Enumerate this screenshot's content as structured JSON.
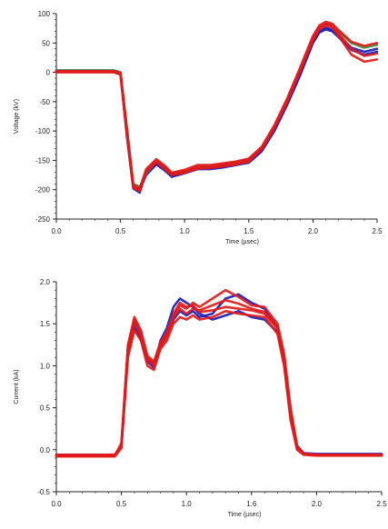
{
  "colors": {
    "axis": "#222222",
    "blue": "#1d1db4",
    "red": "#e21a1a",
    "green": "#3d8a3d"
  },
  "chart_data": [
    {
      "type": "line",
      "title": "",
      "xlabel": "Time (µsec)",
      "ylabel": "Voltage (kV)",
      "xlim": [
        0.0,
        2.5
      ],
      "ylim": [
        -250,
        100
      ],
      "grid": false,
      "legend": "none",
      "x_ticks": [
        "0.0",
        "0.5",
        "1.0",
        "1.5",
        "2.0",
        "2.5"
      ],
      "y_ticks": [
        "100",
        "50",
        "0",
        "-50",
        "-100",
        "-150",
        "-200",
        "-250"
      ],
      "series": [
        {
          "color": "blue",
          "x": [
            0.0,
            0.45,
            0.5,
            0.55,
            0.6,
            0.65,
            0.7,
            0.78,
            0.85,
            0.9,
            1.0,
            1.1,
            1.2,
            1.3,
            1.4,
            1.5,
            1.6,
            1.7,
            1.8,
            1.9,
            2.0,
            2.05,
            2.1,
            2.15,
            2.2,
            2.3,
            2.4,
            2.5
          ],
          "y": [
            3,
            3,
            0,
            -100,
            -195,
            -200,
            -175,
            -157,
            -168,
            -178,
            -172,
            -165,
            -165,
            -162,
            -158,
            -154,
            -135,
            -100,
            -55,
            -5,
            50,
            68,
            73,
            70,
            60,
            38,
            30,
            35
          ]
        },
        {
          "color": "blue",
          "x": [
            0.0,
            0.45,
            0.5,
            0.55,
            0.6,
            0.65,
            0.7,
            0.78,
            0.85,
            0.9,
            1.0,
            1.1,
            1.2,
            1.3,
            1.4,
            1.5,
            1.6,
            1.7,
            1.8,
            1.9,
            2.0,
            2.05,
            2.1,
            2.15,
            2.2,
            2.3,
            2.4,
            2.5
          ],
          "y": [
            2,
            2,
            -2,
            -110,
            -198,
            -205,
            -170,
            -155,
            -165,
            -176,
            -170,
            -163,
            -163,
            -160,
            -156,
            -152,
            -132,
            -97,
            -52,
            -2,
            52,
            70,
            76,
            72,
            62,
            42,
            35,
            40
          ]
        },
        {
          "color": "green",
          "x": [
            0.0,
            0.45,
            0.5,
            0.55,
            0.6,
            0.65,
            0.7,
            0.78,
            0.85,
            0.9,
            1.0,
            1.1,
            1.2,
            1.3,
            1.4,
            1.5,
            1.6,
            1.7,
            1.8,
            1.9,
            2.0,
            2.05,
            2.1,
            2.15,
            2.2,
            2.3,
            2.4,
            2.5
          ],
          "y": [
            3,
            3,
            0,
            -95,
            -190,
            -195,
            -172,
            -152,
            -162,
            -172,
            -168,
            -160,
            -160,
            -157,
            -153,
            -148,
            -128,
            -92,
            -45,
            5,
            58,
            76,
            83,
            80,
            70,
            50,
            42,
            47
          ]
        },
        {
          "color": "red",
          "x": [
            0.0,
            0.45,
            0.5,
            0.55,
            0.6,
            0.65,
            0.7,
            0.78,
            0.85,
            0.9,
            1.0,
            1.1,
            1.2,
            1.3,
            1.4,
            1.5,
            1.6,
            1.7,
            1.8,
            1.9,
            2.0,
            2.05,
            2.1,
            2.15,
            2.2,
            2.3,
            2.4,
            2.5
          ],
          "y": [
            1,
            1,
            -3,
            -105,
            -195,
            -200,
            -168,
            -150,
            -163,
            -174,
            -169,
            -162,
            -161,
            -158,
            -155,
            -151,
            -131,
            -95,
            -50,
            2,
            55,
            73,
            80,
            76,
            62,
            30,
            18,
            22
          ]
        },
        {
          "color": "red",
          "x": [
            0.0,
            0.45,
            0.5,
            0.55,
            0.6,
            0.65,
            0.7,
            0.78,
            0.85,
            0.9,
            1.0,
            1.1,
            1.2,
            1.3,
            1.4,
            1.5,
            1.6,
            1.7,
            1.8,
            1.9,
            2.0,
            2.05,
            2.1,
            2.15,
            2.2,
            2.3,
            2.4,
            2.5
          ],
          "y": [
            2,
            2,
            -1,
            -98,
            -192,
            -198,
            -165,
            -148,
            -160,
            -171,
            -166,
            -158,
            -158,
            -155,
            -152,
            -147,
            -127,
            -90,
            -44,
            8,
            62,
            80,
            86,
            83,
            72,
            52,
            45,
            50
          ]
        },
        {
          "color": "red",
          "x": [
            0.0,
            0.45,
            0.5,
            0.55,
            0.6,
            0.65,
            0.7,
            0.78,
            0.85,
            0.9,
            1.0,
            1.1,
            1.2,
            1.3,
            1.4,
            1.5,
            1.6,
            1.7,
            1.8,
            1.9,
            2.0,
            2.05,
            2.1,
            2.15,
            2.2,
            2.3,
            2.4,
            2.5
          ],
          "y": [
            0,
            0,
            -4,
            -108,
            -197,
            -202,
            -170,
            -153,
            -166,
            -175,
            -171,
            -164,
            -163,
            -160,
            -157,
            -152,
            -130,
            -93,
            -48,
            4,
            58,
            77,
            82,
            79,
            66,
            40,
            28,
            32
          ]
        }
      ]
    },
    {
      "type": "line",
      "title": "",
      "xlabel": "Time (µsec)",
      "ylabel": "Current (kA)",
      "xlim": [
        0.0,
        2.5
      ],
      "ylim": [
        -0.5,
        2.0
      ],
      "grid": false,
      "legend": "none",
      "x_ticks": [
        "0.0",
        "0.5",
        "1.0",
        "1.6",
        "2.0",
        "2.5"
      ],
      "y_ticks": [
        "2.0",
        "1.5",
        "1.0",
        "0.5",
        "0.0",
        "-0.5"
      ],
      "series": [
        {
          "color": "blue",
          "x": [
            0.0,
            0.45,
            0.5,
            0.55,
            0.6,
            0.65,
            0.7,
            0.75,
            0.8,
            0.85,
            0.9,
            0.95,
            1.0,
            1.05,
            1.1,
            1.2,
            1.3,
            1.4,
            1.5,
            1.6,
            1.7,
            1.75,
            1.8,
            1.85,
            1.9,
            2.0,
            2.2,
            2.5
          ],
          "y": [
            -0.07,
            -0.07,
            0.05,
            1.2,
            1.5,
            1.38,
            1.1,
            1.02,
            1.25,
            1.35,
            1.55,
            1.65,
            1.6,
            1.65,
            1.58,
            1.62,
            1.8,
            1.85,
            1.75,
            1.68,
            1.45,
            1.1,
            0.4,
            0.02,
            -0.05,
            -0.06,
            -0.06,
            -0.06
          ]
        },
        {
          "color": "blue",
          "x": [
            0.0,
            0.45,
            0.5,
            0.55,
            0.6,
            0.65,
            0.7,
            0.75,
            0.8,
            0.85,
            0.9,
            0.95,
            1.0,
            1.05,
            1.1,
            1.2,
            1.3,
            1.4,
            1.5,
            1.6,
            1.7,
            1.75,
            1.8,
            1.85,
            1.9,
            2.0,
            2.2,
            2.5
          ],
          "y": [
            -0.06,
            -0.06,
            0.03,
            1.15,
            1.45,
            1.32,
            1.05,
            0.98,
            1.3,
            1.45,
            1.7,
            1.8,
            1.75,
            1.7,
            1.62,
            1.55,
            1.6,
            1.65,
            1.58,
            1.55,
            1.4,
            1.05,
            0.45,
            0.05,
            -0.04,
            -0.05,
            -0.05,
            -0.05
          ]
        },
        {
          "color": "red",
          "x": [
            0.0,
            0.45,
            0.5,
            0.55,
            0.6,
            0.65,
            0.7,
            0.75,
            0.8,
            0.85,
            0.9,
            0.95,
            1.0,
            1.05,
            1.1,
            1.2,
            1.3,
            1.4,
            1.5,
            1.6,
            1.7,
            1.75,
            1.8,
            1.85,
            1.9,
            2.0,
            2.2,
            2.5
          ],
          "y": [
            -0.07,
            -0.07,
            0.08,
            1.25,
            1.58,
            1.42,
            1.12,
            1.05,
            1.28,
            1.4,
            1.6,
            1.72,
            1.68,
            1.75,
            1.7,
            1.8,
            1.9,
            1.82,
            1.72,
            1.7,
            1.5,
            1.15,
            0.5,
            0.05,
            -0.05,
            -0.06,
            -0.06,
            -0.06
          ]
        },
        {
          "color": "red",
          "x": [
            0.0,
            0.45,
            0.5,
            0.55,
            0.6,
            0.65,
            0.7,
            0.75,
            0.8,
            0.85,
            0.9,
            0.95,
            1.0,
            1.05,
            1.1,
            1.2,
            1.3,
            1.4,
            1.5,
            1.6,
            1.7,
            1.75,
            1.8,
            1.85,
            1.9,
            2.0,
            2.2,
            2.5
          ],
          "y": [
            -0.08,
            -0.08,
            0.02,
            1.1,
            1.42,
            1.3,
            1.0,
            0.95,
            1.2,
            1.3,
            1.5,
            1.58,
            1.55,
            1.6,
            1.55,
            1.58,
            1.65,
            1.62,
            1.6,
            1.58,
            1.38,
            1.0,
            0.35,
            0.0,
            -0.06,
            -0.07,
            -0.07,
            -0.07
          ]
        },
        {
          "color": "red",
          "x": [
            0.0,
            0.45,
            0.5,
            0.55,
            0.6,
            0.65,
            0.7,
            0.75,
            0.8,
            0.85,
            0.9,
            0.95,
            1.0,
            1.05,
            1.1,
            1.2,
            1.3,
            1.4,
            1.5,
            1.6,
            1.7,
            1.75,
            1.8,
            1.85,
            1.9,
            2.0,
            2.2,
            2.5
          ],
          "y": [
            -0.06,
            -0.06,
            0.06,
            1.18,
            1.52,
            1.36,
            1.08,
            1.0,
            1.22,
            1.36,
            1.58,
            1.68,
            1.62,
            1.68,
            1.66,
            1.72,
            1.78,
            1.74,
            1.68,
            1.64,
            1.46,
            1.1,
            0.42,
            0.03,
            -0.05,
            -0.06,
            -0.06,
            -0.06
          ]
        },
        {
          "color": "red",
          "x": [
            0.0,
            0.45,
            0.5,
            0.55,
            0.6,
            0.65,
            0.7,
            0.75,
            0.8,
            0.85,
            0.9,
            0.95,
            1.0,
            1.05,
            1.1,
            1.2,
            1.3,
            1.4,
            1.5,
            1.6,
            1.7,
            1.75,
            1.8,
            1.85,
            1.9,
            2.0,
            2.2,
            2.5
          ],
          "y": [
            -0.07,
            -0.07,
            0.04,
            1.22,
            1.55,
            1.4,
            1.1,
            1.02,
            1.26,
            1.38,
            1.62,
            1.75,
            1.7,
            1.72,
            1.64,
            1.66,
            1.7,
            1.68,
            1.66,
            1.62,
            1.44,
            1.08,
            0.4,
            0.02,
            -0.05,
            -0.06,
            -0.06,
            -0.06
          ]
        }
      ]
    }
  ]
}
